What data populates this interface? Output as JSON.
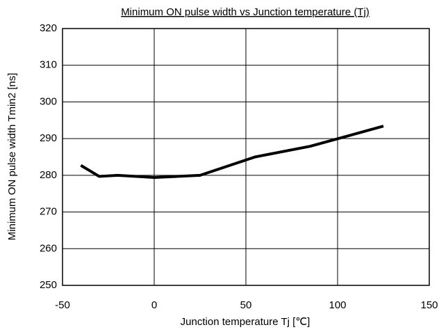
{
  "chart_data": {
    "type": "line",
    "title": "Minimum ON pulse width   vs Junction temperature (Tj)",
    "x_label": "Junction temperature Tj [℃]",
    "y_label": "Minimum ON pulse width Tmin2 [ns]",
    "x": [
      -40,
      -30,
      -20,
      0,
      25,
      55,
      85,
      125
    ],
    "series": [
      {
        "name": "Tmin2",
        "color": "#000000",
        "values": [
          282.7,
          279.7,
          280.0,
          279.4,
          280.0,
          285.0,
          287.9,
          293.4
        ]
      }
    ],
    "xlim": [
      -50,
      150
    ],
    "xticks": [
      -50,
      0,
      50,
      100,
      150
    ],
    "ylim": [
      250,
      320
    ],
    "yticks": [
      250,
      260,
      270,
      280,
      290,
      300,
      310,
      320
    ],
    "grid": true
  }
}
